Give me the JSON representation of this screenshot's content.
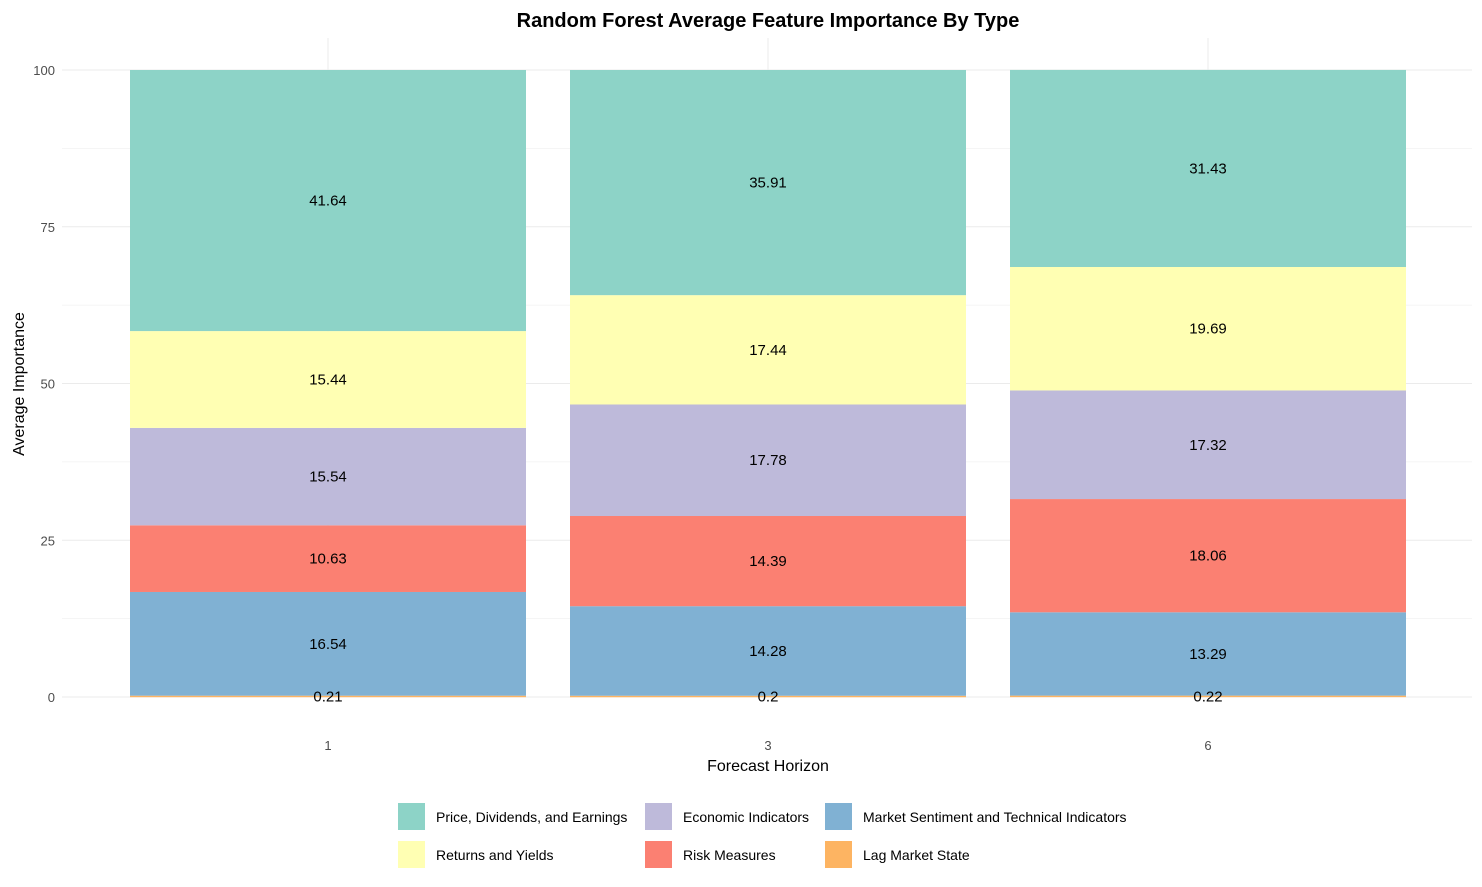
{
  "chart_data": {
    "type": "bar",
    "stacked": true,
    "title": "Random Forest Average Feature Importance By Type",
    "xlabel": "Forecast Horizon",
    "ylabel": "Average Importance",
    "categories": [
      "1",
      "3",
      "6"
    ],
    "ylim": [
      0,
      100
    ],
    "yticks": [
      0,
      25,
      50,
      75,
      100
    ],
    "grid": true,
    "legend_position": "bottom",
    "series": [
      {
        "name": "Lag Market State",
        "color": "#FDB462",
        "values": [
          0.21,
          0.2,
          0.22
        ],
        "labels": [
          "0.21",
          "0.2",
          "0.22"
        ]
      },
      {
        "name": "Market Sentiment and Technical Indicators",
        "color": "#80B1D3",
        "values": [
          16.54,
          14.28,
          13.29
        ],
        "labels": [
          "16.54",
          "14.28",
          "13.29"
        ]
      },
      {
        "name": "Risk Measures",
        "color": "#FB8072",
        "values": [
          10.63,
          14.39,
          18.06
        ],
        "labels": [
          "10.63",
          "14.39",
          "18.06"
        ]
      },
      {
        "name": "Economic Indicators",
        "color": "#BEBADA",
        "values": [
          15.54,
          17.78,
          17.32
        ],
        "labels": [
          "15.54",
          "17.78",
          "17.32"
        ]
      },
      {
        "name": "Returns and Yields",
        "color": "#FFFFB3",
        "values": [
          15.44,
          17.44,
          19.69
        ],
        "labels": [
          "15.44",
          "17.44",
          "19.69"
        ]
      },
      {
        "name": "Price, Dividends, and Earnings",
        "color": "#8DD3C7",
        "values": [
          41.64,
          35.91,
          31.43
        ],
        "labels": [
          "41.64",
          "35.91",
          "31.43"
        ]
      }
    ],
    "legend_order": [
      [
        "Price, Dividends, and Earnings",
        "Economic Indicators",
        "Market Sentiment and Technical Indicators"
      ],
      [
        "Returns and Yields",
        "Risk Measures",
        "Lag Market State"
      ]
    ]
  }
}
